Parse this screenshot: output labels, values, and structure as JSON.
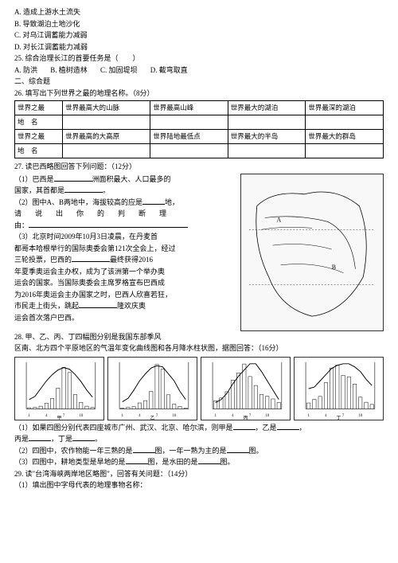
{
  "q24": {
    "A": "A. 造成上游水土流失",
    "B": "B. 导致湖泊土地沙化",
    "C": "C. 对乌江调蓄能力减弱",
    "D": "D. 对长江调蓄能力减弱"
  },
  "q25": {
    "stem": "25. 综合治理长江的首要任务是（　　）",
    "A": "A. 防洪",
    "B": "B. 植树造林",
    "C": "C. 加固堤坝",
    "D": "D. 截弯取直"
  },
  "sec2": "二、综合题",
  "q26": {
    "stem": "26. 填写出下列世界之最的地理名称。（8分）",
    "t": {
      "r1c1": "世界之最",
      "r1c2": "世界最高大的山脉",
      "r1c3": "世界最高山峰",
      "r1c4": "世界最大的湖泊",
      "r1c5": "世界最深的湖泊",
      "r2c1": "地　名",
      "r3c1": "世界之最",
      "r3c2": "世界最高的大高原",
      "r3c3": "世界陆地最低点",
      "r3c4": "世界最大的半岛",
      "r3c5": "世界最大的群岛",
      "r4c1": "地　名"
    }
  },
  "q27": {
    "stem": "27. 读巴西略图回答下列问题：（12分）",
    "l1a": "（1）巴西是",
    "l1b": "洲面积最大、人口最多的",
    "l2a": "国家，其首都是",
    "l2b": "。",
    "l3a": "（2）图中A、B两地中，海拔较高的应是",
    "l3b": "地，",
    "l4": "请　说　出　你　的　判　断　理",
    "l5": "由：",
    "l6": "（3）北京时间2009年10月3日凌晨，在丹麦首",
    "l7": "都哥本哈根举行的国际奥委会第121次全会上，经过",
    "l8a": "三轮投票，巴西的",
    "l8b": "最终获得2016",
    "l9": "年夏季奥运会主办权，成为了该洲第一个举办奥",
    "l10": "运会的国家。当国际奥委会主席罗格宣布巴西成",
    "l11": "为2016年奥运会主办国家之时，巴西人欣喜若狂，",
    "l12a": "市民走上街头，跳起",
    "l12b": "隆欢庆奥",
    "l13": "运会首次落户巴西。"
  },
  "q28": {
    "stem": "28. 甲、乙、丙、丁四幅图分别是我国东部季风",
    "stem2": "区南、北方四个平原地区的气温年变化曲线图和各月降水柱状图，据图回答：（16分）",
    "l1a": "（1）如果四图分别代表四座城市广州、武汉、北京、哈尔滨，则甲是",
    "l1b": "，乙是",
    "l1c": "，",
    "l2a": "丙是",
    "l2b": "，丁是",
    "l2c": "。",
    "l3a": "（2）四图中，农作物能一年三熟的是",
    "l3b": "图，一年一熟为主的是",
    "l3c": "图。",
    "l4a": "（3）四图中，耕地类型是旱地的是",
    "l4b": "图，是水田的是",
    "l4c": "图。",
    "charts": {
      "jia": {
        "label": "甲",
        "temp": [
          -18,
          -14,
          -4,
          6,
          14,
          20,
          23,
          21,
          14,
          5,
          -6,
          -15
        ],
        "prec": [
          4,
          5,
          10,
          22,
          40,
          80,
          160,
          140,
          55,
          25,
          10,
          5
        ],
        "pmax": 180,
        "tmin": -30,
        "tmax": 30
      },
      "yi": {
        "label": "乙",
        "temp": [
          -4,
          -1,
          6,
          14,
          20,
          25,
          27,
          26,
          20,
          14,
          5,
          -2
        ],
        "prec": [
          3,
          6,
          9,
          25,
          35,
          75,
          190,
          170,
          60,
          20,
          10,
          3
        ],
        "pmax": 200,
        "tmin": -10,
        "tmax": 30
      },
      "bing": {
        "label": "丙",
        "temp": [
          4,
          6,
          10,
          16,
          21,
          25,
          29,
          29,
          24,
          18,
          12,
          6
        ],
        "prec": [
          45,
          60,
          95,
          160,
          200,
          250,
          180,
          130,
          80,
          70,
          55,
          35
        ],
        "pmax": 260,
        "tmin": 0,
        "tmax": 30
      },
      "ding": {
        "label": "丁",
        "temp": [
          13,
          14,
          18,
          22,
          26,
          28,
          29,
          29,
          27,
          24,
          19,
          15
        ],
        "prec": [
          40,
          65,
          85,
          180,
          280,
          300,
          230,
          220,
          170,
          80,
          45,
          30
        ],
        "pmax": 320,
        "tmin": 0,
        "tmax": 30
      }
    }
  },
  "q29": {
    "stem": "29. 读\"台湾海峡两岸地区略图\"，回答有关问题：（14分）",
    "l1": "（1）填出图中字母代表的地理事物名称："
  }
}
